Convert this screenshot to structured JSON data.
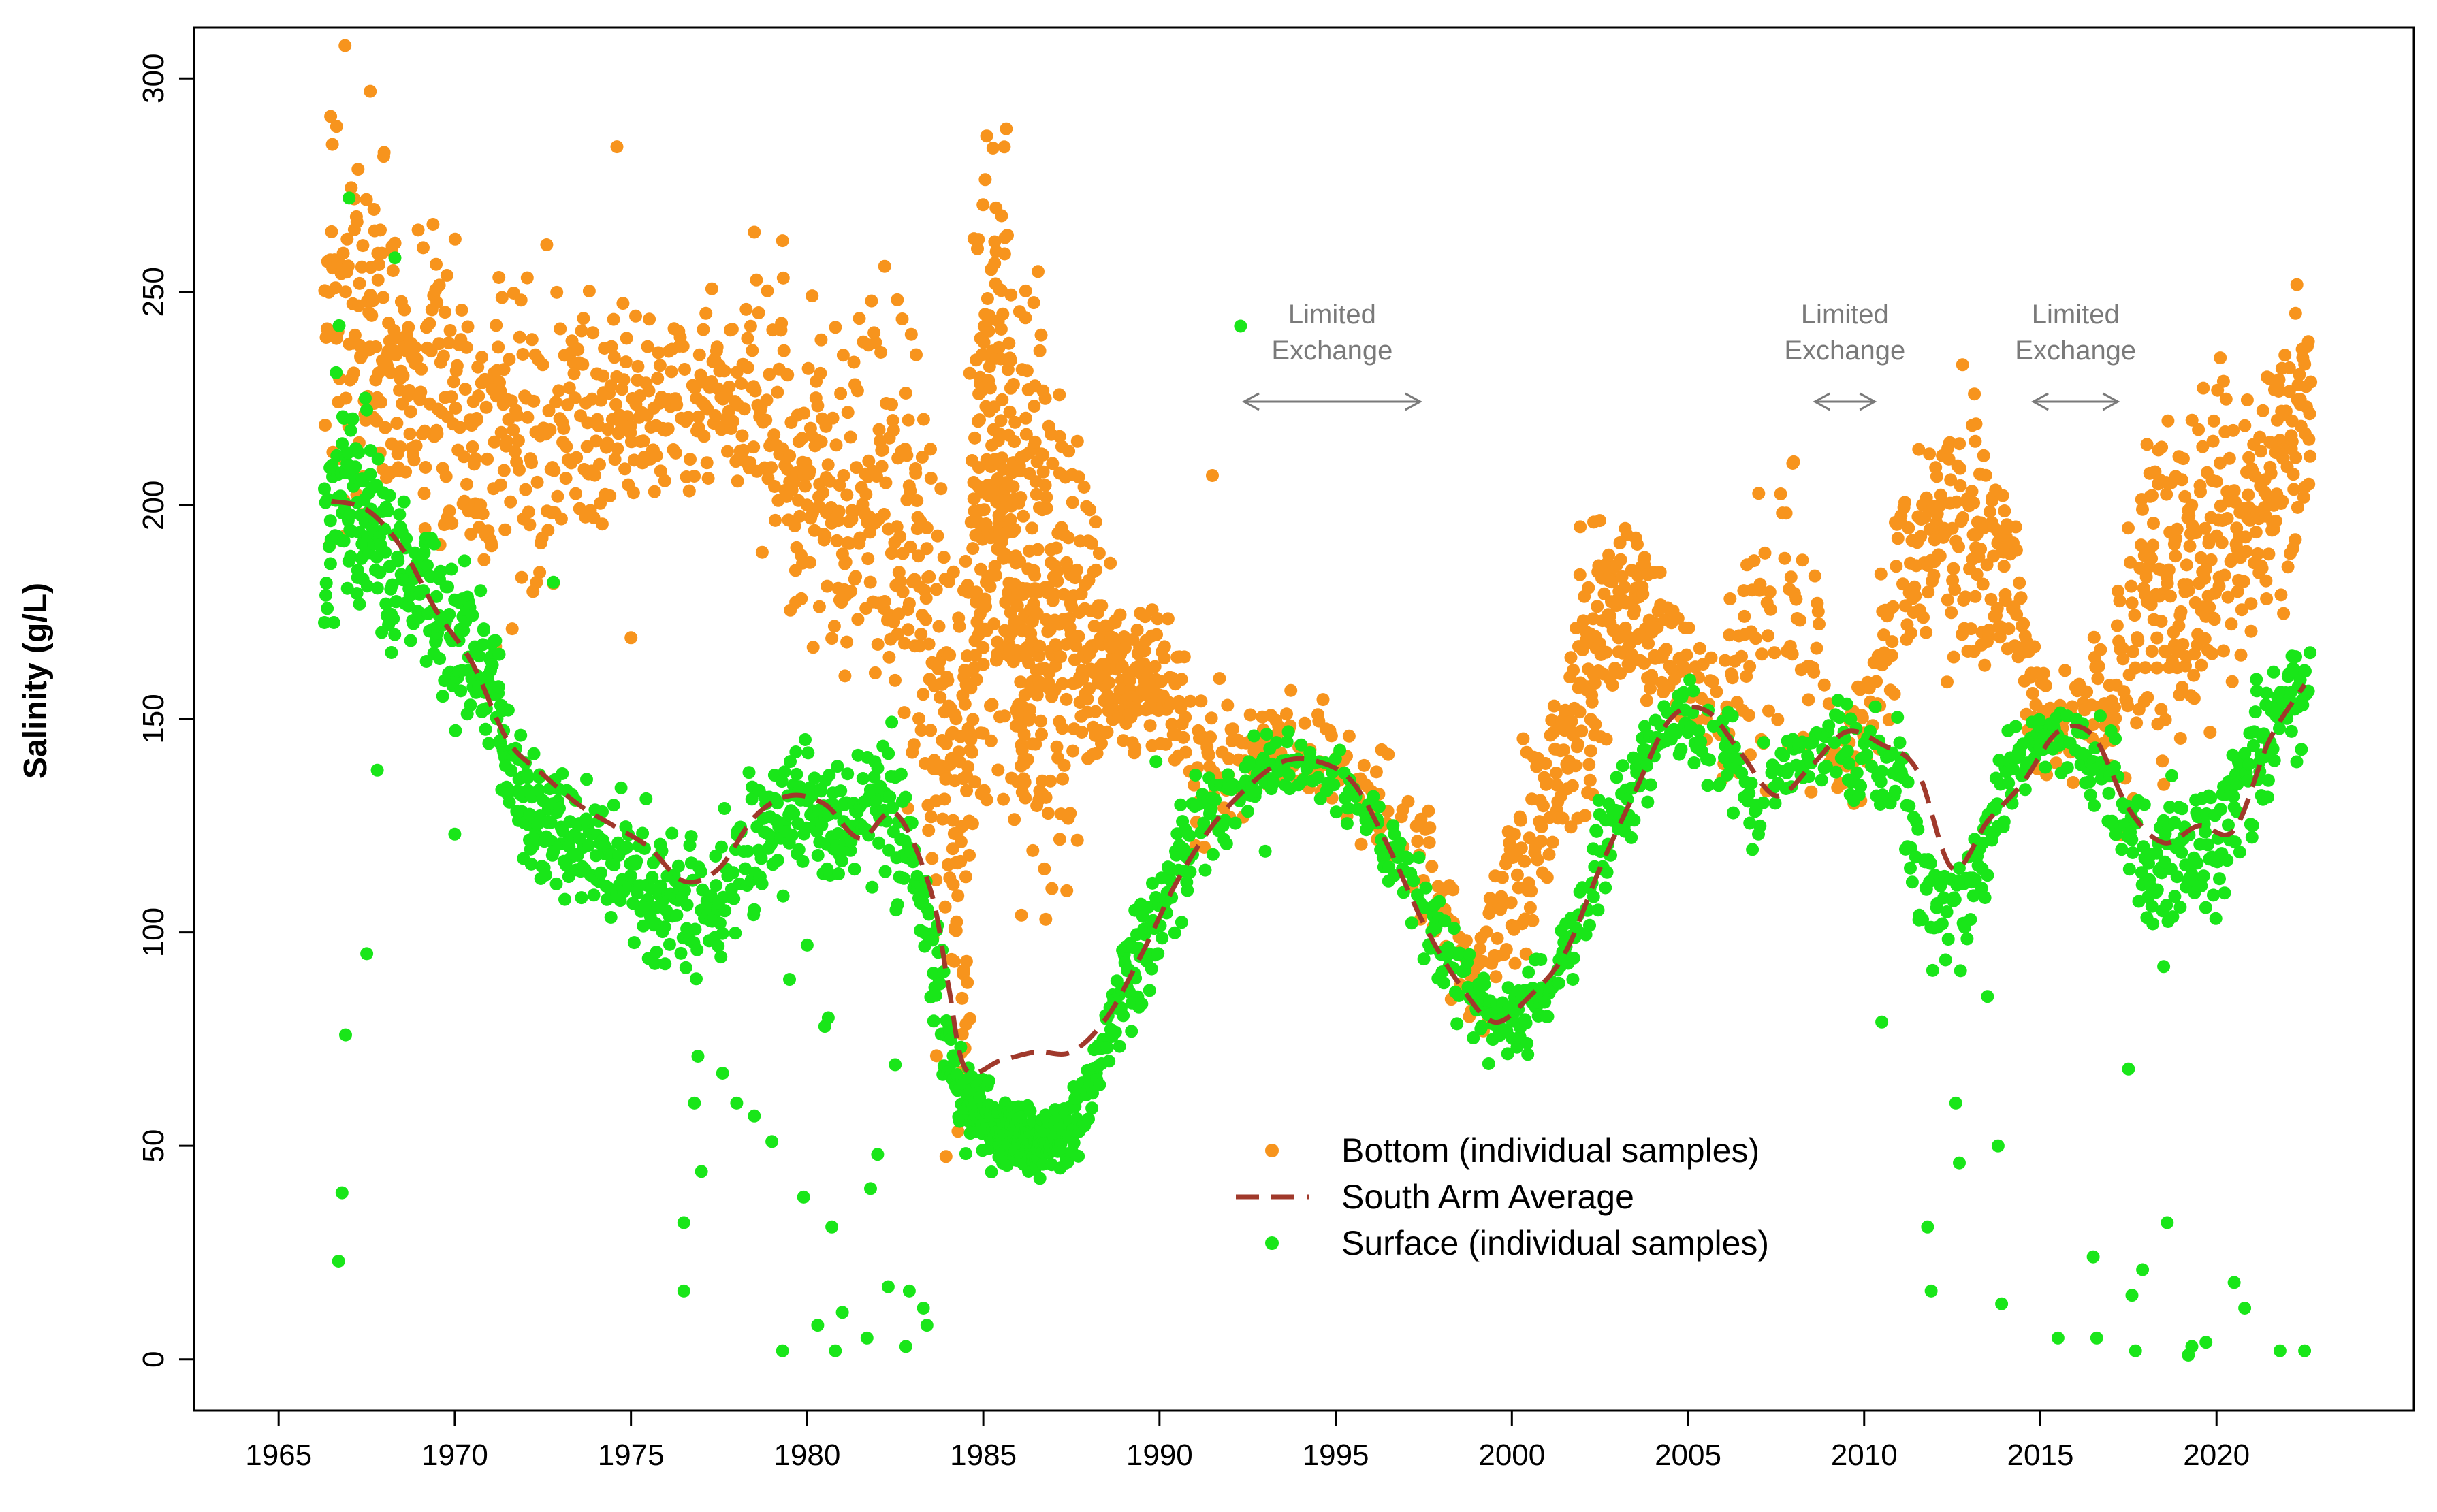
{
  "chart_data": {
    "type": "scatter",
    "title": "",
    "xlabel": "",
    "ylabel": "Salinity (g/L)",
    "xlim": [
      1962.6,
      2025.6
    ],
    "ylim": [
      -12,
      312
    ],
    "xticks": [
      1965,
      1970,
      1975,
      1980,
      1985,
      1990,
      1995,
      2000,
      2005,
      2010,
      2015,
      2020
    ],
    "xtick_labels": [
      "1965",
      "1970",
      "1975",
      "1980",
      "1985",
      "1990",
      "1995",
      "2000",
      "2005",
      "2010",
      "2015",
      "2020"
    ],
    "yticks": [
      0,
      50,
      100,
      150,
      200,
      250,
      300
    ],
    "ytick_labels": [
      "0",
      "50",
      "100",
      "150",
      "200",
      "250",
      "300"
    ],
    "grid": false,
    "legend": {
      "position": "bottom-center",
      "entries": [
        {
          "label": "Bottom (individual samples)",
          "marker": "dot",
          "color": "#f7941d"
        },
        {
          "label": "South Arm Average",
          "marker": "dashed-line",
          "color": "#a0392b"
        },
        {
          "label": "Surface (individual samples)",
          "marker": "dot",
          "color": "#19e619"
        }
      ]
    },
    "annotations": [
      {
        "line1": "Limited",
        "line2": "Exchange",
        "x_start": 1992.4,
        "x_end": 1997.4,
        "x_center": 1994.9
      },
      {
        "line1": "Limited",
        "line2": "Exchange",
        "x_start": 2008.6,
        "x_end": 2010.3,
        "x_center": 2009.45
      },
      {
        "line1": "Limited",
        "line2": "Exchange",
        "x_start": 2014.8,
        "x_end": 2017.2,
        "x_center": 2016.0
      }
    ],
    "series": [
      {
        "name": "Bottom (individual samples)",
        "kind": "scatter",
        "color": "#f7941d",
        "anchors_x": [
          1966.3,
          1967.0,
          1968.0,
          1969.0,
          1970.0,
          1971.0,
          1972.0,
          1973.0,
          1974.0,
          1975.0,
          1976.0,
          1977.0,
          1978.0,
          1979.0,
          1980.0,
          1981.0,
          1982.0,
          1983.0,
          1983.7,
          1984.3,
          1985.0,
          1985.5,
          1986.0,
          1986.5,
          1987.0,
          1987.5,
          1988.0,
          1988.5,
          1989.0,
          1990.0,
          1991.0,
          1992.0,
          1993.0,
          1994.0,
          1995.0,
          1996.0,
          1997.0,
          1998.0,
          1999.0,
          2000.0,
          2001.0,
          2002.0,
          2003.0,
          2004.0,
          2005.0,
          2006.0,
          2007.0,
          2008.0,
          2009.0,
          2010.0,
          2011.0,
          2012.0,
          2013.0,
          2014.0,
          2015.0,
          2016.0,
          2017.0,
          2018.0,
          2019.0,
          2020.0,
          2021.0,
          2022.0,
          2022.7
        ],
        "anchors_y": [
          235,
          250,
          240,
          230,
          225,
          210,
          215,
          220,
          220,
          222,
          225,
          228,
          228,
          218,
          210,
          205,
          200,
          185,
          150,
          120,
          200,
          215,
          175,
          185,
          170,
          165,
          168,
          163,
          160,
          160,
          140,
          137,
          145,
          142,
          140,
          130,
          125,
          108,
          85,
          115,
          125,
          160,
          172,
          172,
          160,
          155,
          165,
          175,
          150,
          145,
          185,
          190,
          195,
          190,
          150,
          150,
          155,
          175,
          185,
          190,
          200,
          215,
          225
        ],
        "spread": [
          35,
          35,
          25,
          25,
          25,
          25,
          25,
          20,
          20,
          15,
          15,
          15,
          15,
          20,
          25,
          25,
          25,
          35,
          45,
          50,
          50,
          45,
          40,
          45,
          35,
          30,
          25,
          15,
          10,
          10,
          12,
          10,
          8,
          8,
          8,
          8,
          10,
          10,
          10,
          15,
          15,
          20,
          15,
          12,
          10,
          12,
          20,
          25,
          15,
          12,
          15,
          20,
          20,
          20,
          10,
          10,
          15,
          25,
          30,
          25,
          20,
          20,
          15
        ],
        "density": [
          1.0,
          1.6,
          1.4,
          1.2,
          1.2,
          1.2,
          1.0,
          1.0,
          1.0,
          1.0,
          0.9,
          0.9,
          0.9,
          1.2,
          1.4,
          1.4,
          1.4,
          1.5,
          1.8,
          2.8,
          4.0,
          4.2,
          4.2,
          3.5,
          2.5,
          2.0,
          2.0,
          2.0,
          1.5,
          1.2,
          0.7,
          0.6,
          0.6,
          0.6,
          0.5,
          0.5,
          0.5,
          0.6,
          0.8,
          0.9,
          1.0,
          1.5,
          1.5,
          1.2,
          0.6,
          0.5,
          0.6,
          0.7,
          0.6,
          0.7,
          0.9,
          1.1,
          1.4,
          1.2,
          0.8,
          0.7,
          0.8,
          1.3,
          1.6,
          1.6,
          1.5,
          1.5,
          1.3
        ],
        "outliers_x": [
          1967.6,
          1974.6,
          1975.0,
          1978.5,
          1979.3,
          1982.2,
          1991.5
        ],
        "outliers_y": [
          297,
          284,
          169,
          264,
          262,
          256,
          207
        ]
      },
      {
        "name": "Surface (individual samples)",
        "kind": "scatter",
        "color": "#19e619",
        "anchors_x": [
          1966.3,
          1967.0,
          1968.0,
          1969.0,
          1970.0,
          1971.0,
          1972.0,
          1973.0,
          1974.0,
          1975.0,
          1976.0,
          1977.0,
          1978.0,
          1979.0,
          1980.0,
          1981.0,
          1982.0,
          1983.0,
          1983.7,
          1984.3,
          1985.0,
          1985.5,
          1986.0,
          1986.5,
          1987.0,
          1987.5,
          1988.0,
          1988.5,
          1989.0,
          1990.0,
          1991.0,
          1992.0,
          1993.0,
          1994.0,
          1995.0,
          1996.0,
          1997.0,
          1998.0,
          1999.0,
          2000.0,
          2001.0,
          2002.0,
          2003.0,
          2004.0,
          2005.0,
          2006.0,
          2007.0,
          2008.0,
          2009.0,
          2010.0,
          2011.0,
          2012.0,
          2013.0,
          2014.0,
          2015.0,
          2016.0,
          2017.0,
          2018.0,
          2019.0,
          2020.0,
          2021.0,
          2022.0,
          2022.7
        ],
        "anchors_y": [
          200,
          205,
          190,
          180,
          170,
          160,
          130,
          125,
          120,
          115,
          110,
          105,
          115,
          125,
          130,
          125,
          130,
          118,
          90,
          62,
          57,
          53,
          53,
          51,
          52,
          53,
          62,
          75,
          88,
          105,
          125,
          132,
          140,
          138,
          135,
          126,
          115,
          98,
          82,
          78,
          86,
          105,
          127,
          145,
          152,
          140,
          130,
          140,
          145,
          140,
          138,
          100,
          110,
          135,
          145,
          145,
          135,
          115,
          120,
          118,
          140,
          155,
          160
        ],
        "spread": [
          20,
          20,
          15,
          12,
          12,
          10,
          10,
          10,
          10,
          10,
          12,
          10,
          10,
          10,
          10,
          10,
          12,
          12,
          10,
          8,
          6,
          5,
          5,
          5,
          5,
          5,
          6,
          8,
          8,
          8,
          8,
          6,
          5,
          5,
          6,
          6,
          8,
          8,
          6,
          6,
          6,
          8,
          8,
          6,
          5,
          8,
          8,
          6,
          6,
          8,
          8,
          10,
          10,
          8,
          5,
          5,
          10,
          10,
          10,
          10,
          10,
          8,
          8
        ],
        "density": [
          1.6,
          1.6,
          1.2,
          1.0,
          1.2,
          1.2,
          1.2,
          1.0,
          1.0,
          1.0,
          0.9,
          0.8,
          0.8,
          0.8,
          1.0,
          1.0,
          1.0,
          1.0,
          1.0,
          1.2,
          2.0,
          2.0,
          2.0,
          1.8,
          1.5,
          1.2,
          1.0,
          1.0,
          1.0,
          0.9,
          0.8,
          0.6,
          0.6,
          0.5,
          0.5,
          0.5,
          0.6,
          0.7,
          0.8,
          0.8,
          0.8,
          0.8,
          0.9,
          0.8,
          0.6,
          0.5,
          0.5,
          0.5,
          0.5,
          0.6,
          0.7,
          0.8,
          0.8,
          0.7,
          0.6,
          0.6,
          0.7,
          0.8,
          0.9,
          0.9,
          0.9,
          0.9,
          0.9
        ],
        "outliers_x": [
          1966.7,
          1966.8,
          1966.9,
          1967.0,
          1967.5,
          1967.8,
          1968.3,
          1970.0,
          1972.8,
          1976.5,
          1976.5,
          1976.8,
          1976.9,
          1977.0,
          1977.6,
          1978.0,
          1978.5,
          1979.0,
          1979.3,
          1979.5,
          1979.9,
          1980.0,
          1980.3,
          1980.5,
          1980.6,
          1980.7,
          1980.8,
          1981.0,
          1981.7,
          1981.8,
          1982.0,
          1982.3,
          1982.5,
          1982.8,
          1982.9,
          1983.3,
          1983.4,
          1989.9,
          1992.3,
          1993.0,
          1996.5,
          2007.0,
          2010.5,
          2011.8,
          2011.9,
          2012.6,
          2012.7,
          2013.5,
          2013.8,
          2013.9,
          2015.5,
          2016.5,
          2016.6,
          2017.5,
          2017.6,
          2017.7,
          2017.9,
          2018.5,
          2018.6,
          2019.2,
          2019.3,
          2019.7,
          2020.5,
          2020.8,
          2021.8,
          2022.5
        ],
        "outliers_y": [
          23,
          39,
          76,
          272,
          95,
          138,
          258,
          123,
          182,
          32,
          16,
          60,
          71,
          44,
          67,
          60,
          57,
          51,
          2,
          89,
          38,
          97,
          8,
          78,
          80,
          31,
          2,
          11,
          5,
          40,
          48,
          17,
          69,
          3,
          16,
          12,
          8,
          140,
          242,
          119,
          112,
          123,
          79,
          31,
          16,
          60,
          46,
          85,
          50,
          13,
          5,
          24,
          5,
          68,
          15,
          2,
          21,
          92,
          32,
          1,
          3,
          4,
          18,
          12,
          2,
          2
        ]
      },
      {
        "name": "South Arm Average",
        "kind": "line",
        "style": "dashed",
        "color": "#a0392b",
        "x": [
          1966.5,
          1967.5,
          1968.5,
          1969.5,
          1970.5,
          1971.5,
          1972.5,
          1973.5,
          1974.5,
          1975.5,
          1976.5,
          1977.5,
          1978.5,
          1979.5,
          1980.5,
          1981.5,
          1982.5,
          1983.5,
          1984.0,
          1984.5,
          1985.5,
          1986.5,
          1987.5,
          1988.5,
          1989.5,
          1990.5,
          1991.5,
          1992.5,
          1993.5,
          1994.5,
          1995.5,
          1996.5,
          1997.5,
          1998.5,
          1999.5,
          2000.5,
          2001.5,
          2002.5,
          2003.5,
          2004.5,
          2005.5,
          2006.5,
          2007.5,
          2008.5,
          2009.5,
          2010.5,
          2011.5,
          2012.5,
          2013.5,
          2014.5,
          2015.5,
          2016.5,
          2017.5,
          2018.5,
          2019.5,
          2020.5,
          2021.5,
          2022.5
        ],
        "y": [
          201,
          199,
          190,
          175,
          163,
          145,
          137,
          130,
          125,
          120,
          112,
          115,
          127,
          132,
          130,
          122,
          128,
          110,
          88,
          68,
          70,
          72,
          72,
          80,
          95,
          112,
          125,
          134,
          140,
          140,
          135,
          120,
          102,
          88,
          79,
          85,
          95,
          115,
          133,
          150,
          152,
          142,
          132,
          139,
          147,
          144,
          138,
          115,
          126,
          135,
          147,
          146,
          129,
          121,
          125,
          124,
          145,
          158
        ]
      }
    ]
  }
}
